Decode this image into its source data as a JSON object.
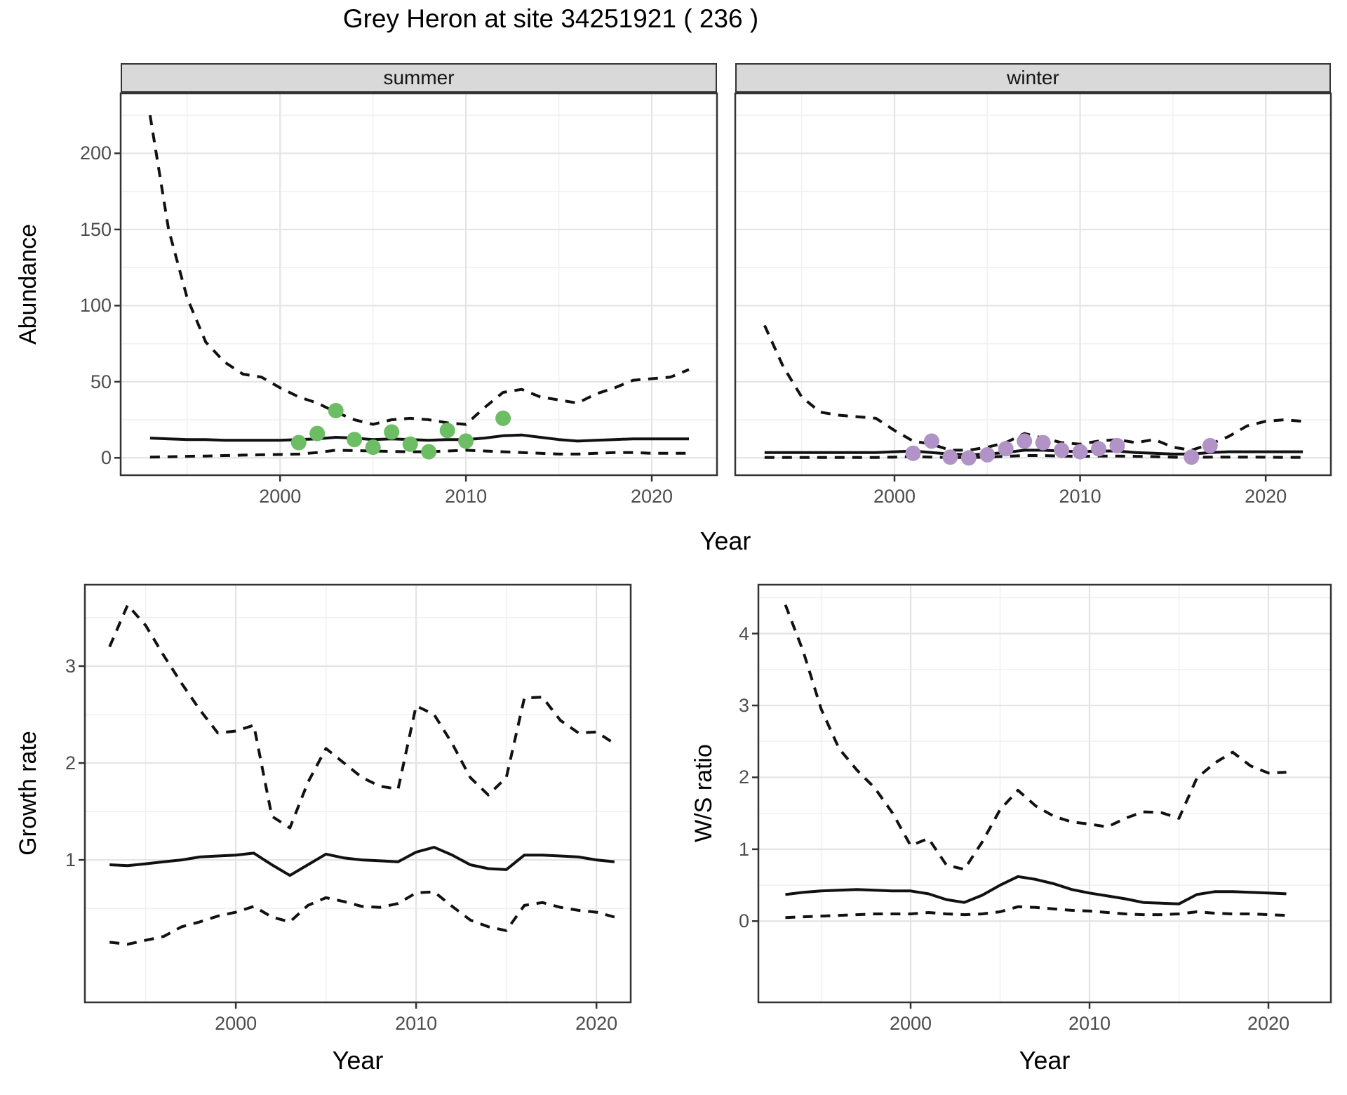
{
  "title": "Grey Heron at site 34251921 ( 236 )",
  "colors": {
    "summer_points": "#6cbd63",
    "winter_points": "#b193c8",
    "line": "#111111",
    "grid_major": "#e4e4e4",
    "grid_minor": "#f1f1f1",
    "strip_bg": "#d9d9d9",
    "panel_border": "#333333",
    "tick_color": "#333333",
    "tick_label": "#4d4d4d"
  },
  "chart_data": [
    {
      "id": "abundance-summer",
      "type": "line",
      "facet_label": "summer",
      "xlabel": "Year",
      "ylabel": "Abundance",
      "xlim": [
        1991.42,
        2023.51
      ],
      "ylim": [
        -11.4,
        239.4
      ],
      "xticks": [
        2000,
        2010,
        2020
      ],
      "xminor": [
        1995,
        2005,
        2015
      ],
      "yticks": [
        0,
        50,
        100,
        150,
        200
      ],
      "yminor": [
        25,
        75,
        125,
        175,
        225
      ],
      "grid": true,
      "legend_position": "none",
      "x": [
        1993,
        1994,
        1995,
        1996,
        1997,
        1998,
        1999,
        2000,
        2001,
        2002,
        2003,
        2004,
        2005,
        2006,
        2007,
        2008,
        2009,
        2010,
        2011,
        2012,
        2013,
        2014,
        2015,
        2016,
        2017,
        2018,
        2019,
        2020,
        2021,
        2022
      ],
      "series": [
        {
          "name": "upper-95ci",
          "style": "dashed",
          "values": [
            225,
            150,
            105,
            76,
            63,
            55,
            53,
            46,
            40,
            36,
            30,
            25,
            22,
            25,
            26,
            25,
            23,
            22,
            33,
            43,
            45,
            40,
            38,
            36,
            42,
            46,
            51,
            52,
            53,
            58
          ]
        },
        {
          "name": "median",
          "style": "solid",
          "values": [
            13,
            12.5,
            12,
            12,
            11.5,
            11.5,
            11.5,
            11.5,
            12,
            12.5,
            13.5,
            13,
            12,
            12.5,
            12,
            11.5,
            12,
            12,
            13,
            14.5,
            15,
            13.5,
            12,
            11,
            11.5,
            12,
            12.5,
            12.5,
            12.5,
            12.5
          ]
        },
        {
          "name": "lower-95ci",
          "style": "dashed",
          "values": [
            0.5,
            0.7,
            1,
            1.2,
            1.5,
            1.8,
            2,
            2.2,
            2.5,
            3.5,
            5,
            4.8,
            4.5,
            4.2,
            4,
            4,
            4.5,
            5,
            4.5,
            4,
            3.5,
            3,
            2.5,
            2.5,
            3,
            3.5,
            3.5,
            3,
            3,
            3
          ]
        }
      ],
      "observed_points": {
        "color_key": "summer_points",
        "x": [
          2001,
          2002,
          2003,
          2004,
          2005,
          2006,
          2007,
          2008,
          2009,
          2010,
          2012
        ],
        "y": [
          10,
          16,
          31,
          12,
          7,
          17,
          9,
          4,
          18,
          11,
          26
        ]
      }
    },
    {
      "id": "abundance-winter",
      "type": "line",
      "facet_label": "winter",
      "xlabel": "Year",
      "ylabel": "Abundance",
      "xlim": [
        1991.42,
        2023.51
      ],
      "ylim": [
        -11.4,
        239.4
      ],
      "xticks": [
        2000,
        2010,
        2020
      ],
      "xminor": [
        1995,
        2005,
        2015
      ],
      "yticks": [
        0,
        50,
        100,
        150,
        200
      ],
      "yminor": [
        25,
        75,
        125,
        175,
        225
      ],
      "grid": true,
      "legend_position": "none",
      "x": [
        1993,
        1994,
        1995,
        1996,
        1997,
        1998,
        1999,
        2000,
        2001,
        2002,
        2003,
        2004,
        2005,
        2006,
        2007,
        2008,
        2009,
        2010,
        2011,
        2012,
        2013,
        2014,
        2015,
        2016,
        2017,
        2018,
        2019,
        2020,
        2021,
        2022
      ],
      "series": [
        {
          "name": "upper-95ci",
          "style": "dashed",
          "values": [
            87,
            60,
            40,
            30,
            28,
            27,
            26,
            18,
            11,
            9,
            5,
            5,
            7,
            10,
            16,
            13,
            10,
            9,
            11,
            12,
            10,
            12,
            7,
            5,
            9,
            14,
            21,
            24,
            25,
            24
          ]
        },
        {
          "name": "median",
          "style": "solid",
          "values": [
            3.5,
            3.5,
            3.5,
            3.5,
            3.5,
            3.5,
            3.5,
            4,
            4.5,
            3.5,
            2.5,
            2,
            2.5,
            3.5,
            5,
            5,
            4.5,
            4,
            4.5,
            4.5,
            3.5,
            3,
            2.5,
            2.5,
            3.5,
            4,
            4,
            4,
            4,
            4
          ]
        },
        {
          "name": "lower-95ci",
          "style": "dashed",
          "values": [
            0.2,
            0.2,
            0.2,
            0.2,
            0.2,
            0.2,
            0.2,
            0.5,
            0.8,
            0.5,
            0.2,
            0.2,
            0.5,
            1,
            1.5,
            1.5,
            1.2,
            1,
            1.2,
            1.2,
            1,
            0.8,
            0.4,
            0.2,
            0.5,
            0.5,
            0.5,
            0.4,
            0.3,
            0.3
          ]
        }
      ],
      "observed_points": {
        "color_key": "winter_points",
        "x": [
          2001,
          2002,
          2003,
          2004,
          2005,
          2006,
          2007,
          2008,
          2009,
          2010,
          2011,
          2012,
          2016,
          2017
        ],
        "y": [
          3,
          11,
          0.5,
          0,
          2,
          6,
          11,
          10,
          5,
          4,
          6,
          8,
          0.5,
          8
        ]
      }
    },
    {
      "id": "growth-rate",
      "type": "line",
      "facet_label": "",
      "xlabel": "Year",
      "ylabel": "Growth rate",
      "xlim": [
        1991.63,
        2021.9
      ],
      "ylim": [
        -0.47,
        3.84
      ],
      "xticks": [
        2000,
        2010,
        2020
      ],
      "xminor": [
        1995,
        2005,
        2015
      ],
      "yticks": [
        1,
        2,
        3
      ],
      "yminor": [
        0.5,
        1.5,
        2.5,
        3.5
      ],
      "grid": true,
      "legend_position": "none",
      "x": [
        1993,
        1994,
        1995,
        1996,
        1997,
        1998,
        1999,
        2000,
        2001,
        2002,
        2003,
        2004,
        2005,
        2006,
        2007,
        2008,
        2009,
        2010,
        2011,
        2012,
        2013,
        2014,
        2015,
        2016,
        2017,
        2018,
        2019,
        2020,
        2021
      ],
      "series": [
        {
          "name": "upper-95ci",
          "style": "dashed",
          "values": [
            3.2,
            3.63,
            3.42,
            3.11,
            2.82,
            2.55,
            2.31,
            2.33,
            2.39,
            1.45,
            1.33,
            1.8,
            2.15,
            2.0,
            1.85,
            1.76,
            1.73,
            2.59,
            2.5,
            2.2,
            1.85,
            1.67,
            1.85,
            2.67,
            2.68,
            2.44,
            2.31,
            2.32,
            2.2
          ]
        },
        {
          "name": "median",
          "style": "solid",
          "values": [
            0.95,
            0.94,
            0.96,
            0.98,
            1.0,
            1.03,
            1.04,
            1.05,
            1.07,
            0.95,
            0.84,
            0.95,
            1.06,
            1.02,
            1.0,
            0.99,
            0.98,
            1.08,
            1.13,
            1.05,
            0.95,
            0.91,
            0.9,
            1.05,
            1.05,
            1.04,
            1.03,
            1.0,
            0.98
          ]
        },
        {
          "name": "lower-95ci",
          "style": "dashed",
          "values": [
            0.15,
            0.13,
            0.17,
            0.21,
            0.31,
            0.36,
            0.42,
            0.46,
            0.52,
            0.41,
            0.36,
            0.53,
            0.61,
            0.57,
            0.52,
            0.51,
            0.55,
            0.66,
            0.67,
            0.52,
            0.38,
            0.31,
            0.27,
            0.53,
            0.56,
            0.51,
            0.48,
            0.46,
            0.41
          ]
        }
      ]
    },
    {
      "id": "ws-ratio",
      "type": "line",
      "facet_label": "",
      "xlabel": "Year",
      "ylabel": "W/S ratio",
      "xlim": [
        1991.49,
        2023.49
      ],
      "ylim": [
        -1.13,
        4.68
      ],
      "xticks": [
        2000,
        2010,
        2020
      ],
      "xminor": [
        1995,
        2005,
        2015
      ],
      "yticks": [
        0,
        1,
        2,
        3,
        4
      ],
      "yminor": [
        0.5,
        1.5,
        2.5,
        3.5,
        4.5
      ],
      "grid": true,
      "legend_position": "none",
      "x": [
        1993,
        1994,
        1995,
        1996,
        1997,
        1998,
        1999,
        2000,
        2001,
        2002,
        2003,
        2004,
        2005,
        2006,
        2007,
        2008,
        2009,
        2010,
        2011,
        2012,
        2013,
        2014,
        2015,
        2016,
        2017,
        2018,
        2019,
        2020,
        2021
      ],
      "series": [
        {
          "name": "upper-95ci",
          "style": "dashed",
          "values": [
            4.4,
            3.75,
            2.95,
            2.4,
            2.1,
            1.85,
            1.5,
            1.05,
            1.15,
            0.78,
            0.72,
            1.1,
            1.55,
            1.82,
            1.6,
            1.46,
            1.38,
            1.35,
            1.31,
            1.43,
            1.52,
            1.51,
            1.43,
            1.99,
            2.2,
            2.35,
            2.16,
            2.06,
            2.07
          ]
        },
        {
          "name": "median",
          "style": "solid",
          "values": [
            0.37,
            0.4,
            0.42,
            0.43,
            0.44,
            0.43,
            0.42,
            0.42,
            0.38,
            0.3,
            0.26,
            0.36,
            0.5,
            0.62,
            0.58,
            0.52,
            0.44,
            0.39,
            0.35,
            0.31,
            0.26,
            0.25,
            0.24,
            0.37,
            0.41,
            0.41,
            0.4,
            0.39,
            0.38
          ]
        },
        {
          "name": "lower-95ci",
          "style": "dashed",
          "values": [
            0.05,
            0.06,
            0.07,
            0.08,
            0.09,
            0.1,
            0.1,
            0.1,
            0.12,
            0.1,
            0.09,
            0.1,
            0.13,
            0.2,
            0.19,
            0.17,
            0.15,
            0.14,
            0.12,
            0.1,
            0.09,
            0.09,
            0.1,
            0.13,
            0.11,
            0.1,
            0.1,
            0.09,
            0.08
          ]
        }
      ]
    }
  ]
}
